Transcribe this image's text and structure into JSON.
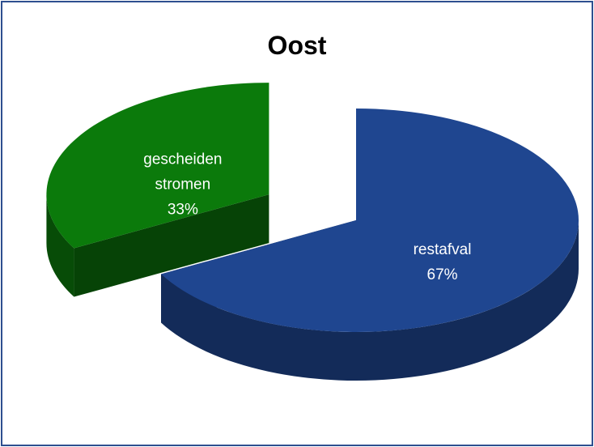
{
  "chart_data": {
    "type": "pie",
    "title": "Oost",
    "categories": [
      "restafval",
      "gescheiden stromen"
    ],
    "values": [
      67,
      33
    ],
    "value_labels": [
      "67%",
      "33%"
    ],
    "colors": [
      "#1f4690",
      "#0b7a0b"
    ],
    "exploded": [
      false,
      true
    ]
  }
}
